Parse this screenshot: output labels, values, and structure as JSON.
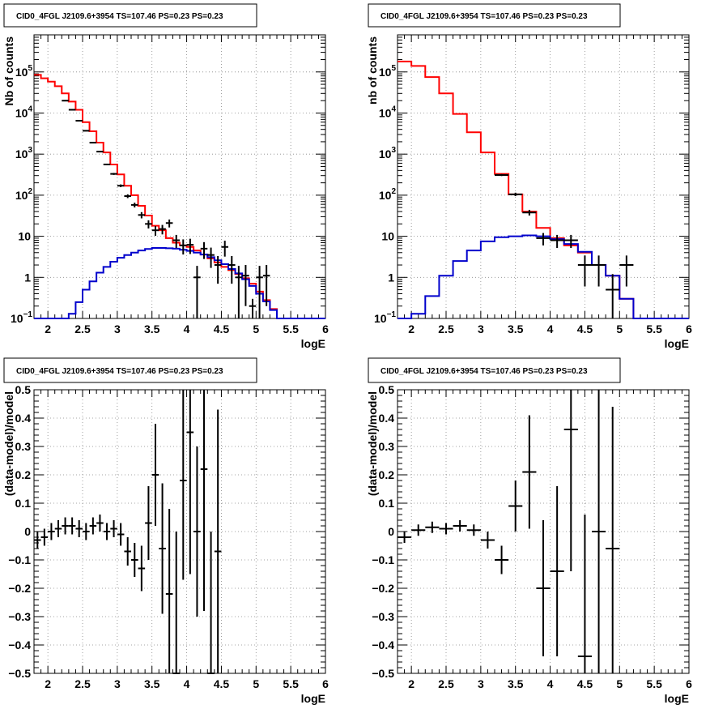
{
  "chart_data": [
    {
      "type": "line",
      "title": "CID0_4FGL J2109.6+3954 TS=107.46 PS=0.23 PS=0.23",
      "xlabel": "logE",
      "ylabel": "Nb of counts",
      "xlim": [
        1.8,
        6.0
      ],
      "ylim": [
        0.1,
        800000
      ],
      "yscale": "log",
      "grid": true,
      "x_ticks": [
        "2",
        "2.5",
        "3",
        "3.5",
        "4",
        "4.5",
        "5",
        "5.5",
        "6"
      ],
      "y_ticks": [
        {
          "value": 0.1,
          "label": "10",
          "exp": "−1"
        },
        {
          "value": 1,
          "label": "1",
          "exp": ""
        },
        {
          "value": 10,
          "label": "10",
          "exp": ""
        },
        {
          "value": 100,
          "label": "10",
          "exp": "2"
        },
        {
          "value": 1000,
          "label": "10",
          "exp": "3"
        },
        {
          "value": 10000,
          "label": "10",
          "exp": "4"
        },
        {
          "value": 100000,
          "label": "10",
          "exp": "5"
        }
      ],
      "bin_width": 0.1,
      "series": [
        {
          "color": "#ff0000",
          "kind": "step",
          "x": [
            1.8,
            1.9,
            2.0,
            2.1,
            2.2,
            2.3,
            2.4,
            2.5,
            2.6,
            2.7,
            2.8,
            2.9,
            3.0,
            3.1,
            3.2,
            3.3,
            3.4,
            3.5,
            3.6,
            3.7,
            3.8,
            3.9,
            4.0,
            4.1,
            4.2,
            4.3,
            4.4,
            4.5,
            4.6,
            4.7,
            4.8,
            4.9,
            5.0,
            5.1,
            5.2,
            5.3,
            5.4,
            5.5,
            5.6,
            5.7,
            5.8,
            5.9
          ],
          "values": [
            85000,
            70000,
            58000,
            45000,
            30000,
            19000,
            12000,
            6000,
            3600,
            1900,
            1100,
            560,
            320,
            170,
            100,
            55,
            32,
            18,
            14,
            9,
            7,
            6,
            5.5,
            4.5,
            3.6,
            2.9,
            2.3,
            1.8,
            1.5,
            1.2,
            0.95,
            0.7,
            0.45,
            0.28,
            0.17,
            0.1,
            0.1,
            0.1,
            0.1,
            0.1,
            0.1,
            0.1
          ]
        },
        {
          "color": "#0000cc",
          "kind": "step",
          "x": [
            1.8,
            1.9,
            2.0,
            2.1,
            2.2,
            2.3,
            2.4,
            2.5,
            2.6,
            2.7,
            2.8,
            2.9,
            3.0,
            3.1,
            3.2,
            3.3,
            3.4,
            3.5,
            3.6,
            3.7,
            3.8,
            3.9,
            4.0,
            4.1,
            4.2,
            4.3,
            4.4,
            4.5,
            4.6,
            4.7,
            4.8,
            4.9,
            5.0,
            5.1,
            5.2,
            5.3,
            5.4,
            5.5,
            5.6,
            5.7,
            5.8,
            5.9
          ],
          "values": [
            0.1,
            0.1,
            0.1,
            0.1,
            0.1,
            0.13,
            0.25,
            0.5,
            0.8,
            1.3,
            1.8,
            2.4,
            3.0,
            3.5,
            4.0,
            4.5,
            4.9,
            5.2,
            5.2,
            5.1,
            5.0,
            4.7,
            4.4,
            4.0,
            3.6,
            3.1,
            2.6,
            2.1,
            1.6,
            1.25,
            0.9,
            0.62,
            0.4,
            0.26,
            0.16,
            0.1,
            0.1,
            0.1,
            0.1,
            0.1,
            0.1,
            0.1
          ]
        },
        {
          "color": "#000000",
          "kind": "points",
          "x": [
            2.25,
            2.35,
            2.45,
            2.55,
            2.65,
            2.75,
            2.85,
            2.95,
            3.05,
            3.15,
            3.25,
            3.35,
            3.45,
            3.55,
            3.65,
            3.75,
            3.85,
            3.95,
            4.05,
            4.15,
            4.25,
            4.35,
            4.45,
            4.55,
            4.65,
            4.75,
            4.85,
            4.95,
            5.05,
            5.15
          ],
          "values": [
            20000,
            12000,
            6500,
            3700,
            1900,
            1150,
            560,
            330,
            170,
            95,
            58,
            33,
            20,
            14,
            15,
            21,
            8,
            6,
            6.2,
            1,
            5,
            3.5,
            2,
            5.5,
            2,
            1,
            1.1,
            0.2,
            1,
            1.1
          ],
          "y_err": [
            140,
            110,
            80,
            60,
            44,
            34,
            24,
            18,
            13,
            10,
            7.6,
            5.7,
            4.5,
            3.7,
            3.9,
            4.6,
            2.8,
            2.4,
            2.5,
            0.9,
            2.2,
            1.8,
            1.3,
            2.3,
            1.3,
            0.9,
            0.9,
            0.1,
            0.9,
            0.9
          ]
        }
      ]
    },
    {
      "type": "line",
      "title": "CID0_4FGL J2109.6+3954 TS=107.46 PS=0.23 PS=0.23",
      "xlabel": "logE",
      "ylabel": "nb of counts",
      "xlim": [
        1.8,
        6.0
      ],
      "ylim": [
        0.1,
        800000
      ],
      "yscale": "log",
      "grid": true,
      "x_ticks": [
        "2",
        "2.5",
        "3",
        "3.5",
        "4",
        "4.5",
        "5",
        "5.5",
        "6"
      ],
      "y_ticks": [
        {
          "value": 0.1,
          "label": "10",
          "exp": "−1"
        },
        {
          "value": 1,
          "label": "1",
          "exp": ""
        },
        {
          "value": 10,
          "label": "10",
          "exp": ""
        },
        {
          "value": 100,
          "label": "10",
          "exp": "2"
        },
        {
          "value": 1000,
          "label": "10",
          "exp": "3"
        },
        {
          "value": 10000,
          "label": "10",
          "exp": "4"
        },
        {
          "value": 100000,
          "label": "10",
          "exp": "5"
        }
      ],
      "bin_width": 0.2,
      "series": [
        {
          "color": "#ff0000",
          "kind": "step",
          "x": [
            1.8,
            2.0,
            2.2,
            2.4,
            2.6,
            2.8,
            3.0,
            3.2,
            3.4,
            3.6,
            3.8,
            4.0,
            4.2,
            4.4,
            4.6,
            4.8,
            5.0,
            5.2,
            5.4,
            5.6,
            5.8
          ],
          "values": [
            180000,
            140000,
            75000,
            30000,
            9500,
            3400,
            1100,
            330,
            105,
            40,
            16,
            9,
            6,
            4,
            2,
            1.1,
            0.3,
            0.1,
            0.1,
            0.1,
            0.1
          ]
        },
        {
          "color": "#0000cc",
          "kind": "step",
          "x": [
            1.8,
            2.0,
            2.2,
            2.4,
            2.6,
            2.8,
            3.0,
            3.2,
            3.4,
            3.6,
            3.8,
            4.0,
            4.2,
            4.4,
            4.6,
            4.8,
            5.0,
            5.2,
            5.4,
            5.6,
            5.8
          ],
          "values": [
            0.1,
            0.13,
            0.35,
            1.1,
            2.5,
            4.5,
            7.5,
            9.5,
            10,
            10.5,
            10,
            8.5,
            6.5,
            4.2,
            2,
            1.1,
            0.3,
            0.1,
            0.1,
            0.1,
            0.1
          ]
        },
        {
          "color": "#000000",
          "kind": "points",
          "x": [
            3.3,
            3.5,
            3.7,
            3.9,
            4.1,
            4.3,
            4.5,
            4.7,
            4.9,
            5.1
          ],
          "values": [
            310,
            105,
            38,
            9,
            8,
            8,
            2,
            2,
            0.5,
            2
          ],
          "y_err": [
            18,
            10,
            6,
            3,
            2.8,
            2.8,
            1.4,
            1.4,
            0.7,
            1.4
          ]
        }
      ]
    },
    {
      "type": "scatter",
      "title": "CID0_4FGL J2109.6+3954 TS=107.46 PS=0.23 PS=0.23",
      "xlabel": "logE",
      "ylabel": "(data-model)/model",
      "xlim": [
        1.8,
        6.0
      ],
      "ylim": [
        -0.5,
        0.5
      ],
      "grid": true,
      "x_ticks": [
        "2",
        "2.5",
        "3",
        "3.5",
        "4",
        "4.5",
        "5",
        "5.5",
        "6"
      ],
      "y_ticks": [
        "−0.5",
        "−0.4",
        "−0.3",
        "−0.2",
        "−0.1",
        "0",
        "0.1",
        "0.2",
        "0.3",
        "0.4",
        "0.5"
      ],
      "bin_width": 0.1,
      "series": [
        {
          "color": "#000000",
          "kind": "points",
          "x": [
            1.85,
            1.95,
            2.05,
            2.15,
            2.25,
            2.35,
            2.45,
            2.55,
            2.65,
            2.75,
            2.85,
            2.95,
            3.05,
            3.15,
            3.25,
            3.35,
            3.45,
            3.55,
            3.65,
            3.75,
            3.85,
            3.95,
            4.05,
            4.15,
            4.25,
            4.35,
            4.45
          ],
          "values": [
            -0.03,
            -0.02,
            0.0,
            0.01,
            0.02,
            0.02,
            0.01,
            0.0,
            0.02,
            0.03,
            0.0,
            0.01,
            -0.01,
            -0.07,
            -0.1,
            -0.13,
            0.03,
            0.2,
            -0.06,
            -0.22,
            -0.5,
            0.18,
            0.35,
            0.0,
            0.22,
            -0.5,
            -0.07
          ],
          "y_err": [
            0.03,
            0.03,
            0.03,
            0.03,
            0.03,
            0.03,
            0.03,
            0.03,
            0.03,
            0.03,
            0.03,
            0.03,
            0.04,
            0.05,
            0.06,
            0.08,
            0.13,
            0.18,
            0.23,
            0.3,
            0.5,
            0.35,
            0.5,
            0.3,
            0.5,
            0.5,
            0.5
          ]
        }
      ]
    },
    {
      "type": "scatter",
      "title": "CID0_4FGL J2109.6+3954 TS=107.46 PS=0.23 PS=0.23",
      "xlabel": "logE",
      "ylabel": "(data-model)/model",
      "xlim": [
        1.8,
        6.0
      ],
      "ylim": [
        -0.5,
        0.5
      ],
      "grid": true,
      "x_ticks": [
        "2",
        "2.5",
        "3",
        "3.5",
        "4",
        "4.5",
        "5",
        "5.5",
        "6"
      ],
      "y_ticks": [
        "−0.5",
        "−0.4",
        "−0.3",
        "−0.2",
        "−0.1",
        "0",
        "0.1",
        "0.2",
        "0.3",
        "0.4",
        "0.5"
      ],
      "bin_width": 0.2,
      "series": [
        {
          "color": "#000000",
          "kind": "points",
          "x": [
            1.9,
            2.1,
            2.3,
            2.5,
            2.7,
            2.9,
            3.1,
            3.3,
            3.5,
            3.7,
            3.9,
            4.1,
            4.3,
            4.5,
            4.7,
            4.9
          ],
          "values": [
            -0.02,
            0.005,
            0.015,
            0.01,
            0.02,
            0.005,
            -0.03,
            -0.1,
            0.09,
            0.21,
            -0.2,
            -0.14,
            0.36,
            -0.44,
            0.0,
            -0.06
          ],
          "y_err": [
            0.02,
            0.02,
            0.02,
            0.02,
            0.02,
            0.02,
            0.03,
            0.05,
            0.09,
            0.2,
            0.24,
            0.3,
            0.5,
            0.5,
            0.5,
            0.5
          ]
        }
      ]
    }
  ]
}
